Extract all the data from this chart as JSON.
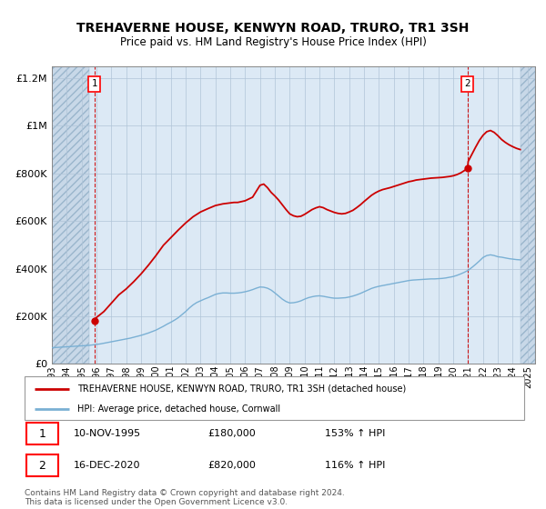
{
  "title": "TREHAVERNE HOUSE, KENWYN ROAD, TRURO, TR1 3SH",
  "subtitle": "Price paid vs. HM Land Registry's House Price Index (HPI)",
  "background_color": "#ffffff",
  "plot_bg_color": "#dce9f5",
  "hatch_bg_color": "#c8d8e8",
  "grid_color": "#b0c4d8",
  "legend_label_red": "TREHAVERNE HOUSE, KENWYN ROAD, TRURO, TR1 3SH (detached house)",
  "legend_label_blue": "HPI: Average price, detached house, Cornwall",
  "marker1_date": "10-NOV-1995",
  "marker1_price": "£180,000",
  "marker1_hpi": "153% ↑ HPI",
  "marker2_date": "16-DEC-2020",
  "marker2_price": "£820,000",
  "marker2_hpi": "116% ↑ HPI",
  "footer": "Contains HM Land Registry data © Crown copyright and database right 2024.\nThis data is licensed under the Open Government Licence v3.0.",
  "hpi_line_color": "#7ab0d4",
  "price_line_color": "#cc0000",
  "marker_color": "#cc0000",
  "marker1_x": 1995.87,
  "marker1_y": 180000,
  "marker2_x": 2020.96,
  "marker2_y": 820000,
  "ylim_min": 0,
  "ylim_max": 1250000,
  "xlim_min": 1993.0,
  "xlim_max": 2025.5,
  "hatch_end_x": 1995.5,
  "hatch_start_x2": 2024.5,
  "yticks": [
    0,
    200000,
    400000,
    600000,
    800000,
    1000000,
    1200000
  ],
  "ytick_labels": [
    "£0",
    "£200K",
    "£400K",
    "£600K",
    "£800K",
    "£1M",
    "£1.2M"
  ],
  "xticks": [
    1993,
    1994,
    1995,
    1996,
    1997,
    1998,
    1999,
    2000,
    2001,
    2002,
    2003,
    2004,
    2005,
    2006,
    2007,
    2008,
    2009,
    2010,
    2011,
    2012,
    2013,
    2014,
    2015,
    2016,
    2017,
    2018,
    2019,
    2020,
    2021,
    2022,
    2023,
    2024,
    2025
  ],
  "hpi_data_x": [
    1993.0,
    1993.25,
    1993.5,
    1993.75,
    1994.0,
    1994.25,
    1994.5,
    1994.75,
    1995.0,
    1995.25,
    1995.5,
    1995.75,
    1996.0,
    1996.25,
    1996.5,
    1996.75,
    1997.0,
    1997.25,
    1997.5,
    1997.75,
    1998.0,
    1998.25,
    1998.5,
    1998.75,
    1999.0,
    1999.25,
    1999.5,
    1999.75,
    2000.0,
    2000.25,
    2000.5,
    2000.75,
    2001.0,
    2001.25,
    2001.5,
    2001.75,
    2002.0,
    2002.25,
    2002.5,
    2002.75,
    2003.0,
    2003.25,
    2003.5,
    2003.75,
    2004.0,
    2004.25,
    2004.5,
    2004.75,
    2005.0,
    2005.25,
    2005.5,
    2005.75,
    2006.0,
    2006.25,
    2006.5,
    2006.75,
    2007.0,
    2007.25,
    2007.5,
    2007.75,
    2008.0,
    2008.25,
    2008.5,
    2008.75,
    2009.0,
    2009.25,
    2009.5,
    2009.75,
    2010.0,
    2010.25,
    2010.5,
    2010.75,
    2011.0,
    2011.25,
    2011.5,
    2011.75,
    2012.0,
    2012.25,
    2012.5,
    2012.75,
    2013.0,
    2013.25,
    2013.5,
    2013.75,
    2014.0,
    2014.25,
    2014.5,
    2014.75,
    2015.0,
    2015.25,
    2015.5,
    2015.75,
    2016.0,
    2016.25,
    2016.5,
    2016.75,
    2017.0,
    2017.25,
    2017.5,
    2017.75,
    2018.0,
    2018.25,
    2018.5,
    2018.75,
    2019.0,
    2019.25,
    2019.5,
    2019.75,
    2020.0,
    2020.25,
    2020.5,
    2020.75,
    2021.0,
    2021.25,
    2021.5,
    2021.75,
    2022.0,
    2022.25,
    2022.5,
    2022.75,
    2023.0,
    2023.25,
    2023.5,
    2023.75,
    2024.0,
    2024.25,
    2024.5
  ],
  "hpi_data_y": [
    68000,
    69000,
    70000,
    71000,
    72000,
    73000,
    74000,
    75000,
    76000,
    77000,
    78000,
    80000,
    82000,
    84000,
    87000,
    90000,
    93000,
    96000,
    99000,
    102000,
    105000,
    108000,
    112000,
    116000,
    120000,
    125000,
    130000,
    136000,
    142000,
    150000,
    158000,
    167000,
    175000,
    184000,
    194000,
    207000,
    220000,
    235000,
    248000,
    258000,
    265000,
    272000,
    278000,
    285000,
    292000,
    296000,
    298000,
    298000,
    297000,
    297000,
    298000,
    300000,
    303000,
    307000,
    312000,
    318000,
    323000,
    322000,
    318000,
    310000,
    298000,
    285000,
    272000,
    262000,
    256000,
    257000,
    260000,
    265000,
    272000,
    278000,
    282000,
    285000,
    286000,
    284000,
    281000,
    278000,
    276000,
    276000,
    277000,
    278000,
    281000,
    285000,
    290000,
    296000,
    303000,
    310000,
    317000,
    322000,
    326000,
    329000,
    332000,
    335000,
    338000,
    341000,
    344000,
    347000,
    350000,
    352000,
    353000,
    354000,
    355000,
    356000,
    357000,
    357000,
    358000,
    359000,
    361000,
    364000,
    367000,
    372000,
    378000,
    385000,
    393000,
    405000,
    418000,
    432000,
    447000,
    455000,
    458000,
    455000,
    450000,
    448000,
    445000,
    442000,
    440000,
    438000,
    437000
  ],
  "price_data_x": [
    1995.87,
    1996.0,
    1996.5,
    1997.0,
    1997.5,
    1998.0,
    1998.5,
    1999.0,
    1999.5,
    2000.0,
    2000.5,
    2001.0,
    2001.5,
    2002.0,
    2002.5,
    2003.0,
    2003.5,
    2004.0,
    2004.5,
    2005.0,
    2005.25,
    2005.5,
    2006.0,
    2006.5,
    2007.0,
    2007.25,
    2007.5,
    2007.75,
    2008.0,
    2008.25,
    2008.5,
    2008.75,
    2009.0,
    2009.25,
    2009.5,
    2009.75,
    2010.0,
    2010.25,
    2010.5,
    2010.75,
    2011.0,
    2011.25,
    2011.5,
    2011.75,
    2012.0,
    2012.25,
    2012.5,
    2012.75,
    2013.0,
    2013.25,
    2013.5,
    2013.75,
    2014.0,
    2014.25,
    2014.5,
    2014.75,
    2015.0,
    2015.25,
    2015.5,
    2015.75,
    2016.0,
    2016.25,
    2016.5,
    2016.75,
    2017.0,
    2017.25,
    2017.5,
    2017.75,
    2018.0,
    2018.25,
    2018.5,
    2018.75,
    2019.0,
    2019.25,
    2019.5,
    2019.75,
    2020.0,
    2020.25,
    2020.5,
    2020.75,
    2020.96,
    2021.0,
    2021.25,
    2021.5,
    2021.75,
    2022.0,
    2022.25,
    2022.5,
    2022.75,
    2023.0,
    2023.25,
    2023.5,
    2023.75,
    2024.0,
    2024.25,
    2024.5
  ],
  "price_data_y": [
    180000,
    195000,
    220000,
    255000,
    290000,
    315000,
    345000,
    378000,
    415000,
    455000,
    498000,
    530000,
    562000,
    592000,
    618000,
    638000,
    652000,
    665000,
    672000,
    676000,
    678000,
    678000,
    685000,
    700000,
    750000,
    755000,
    740000,
    720000,
    705000,
    688000,
    668000,
    648000,
    630000,
    622000,
    618000,
    620000,
    628000,
    638000,
    648000,
    655000,
    660000,
    656000,
    648000,
    642000,
    636000,
    632000,
    630000,
    632000,
    638000,
    645000,
    656000,
    668000,
    682000,
    695000,
    708000,
    718000,
    726000,
    732000,
    736000,
    740000,
    745000,
    750000,
    755000,
    760000,
    765000,
    768000,
    772000,
    774000,
    776000,
    778000,
    780000,
    781000,
    782000,
    783000,
    785000,
    787000,
    790000,
    795000,
    802000,
    812000,
    820000,
    850000,
    880000,
    910000,
    938000,
    960000,
    975000,
    980000,
    972000,
    958000,
    942000,
    930000,
    920000,
    912000,
    905000,
    900000
  ]
}
